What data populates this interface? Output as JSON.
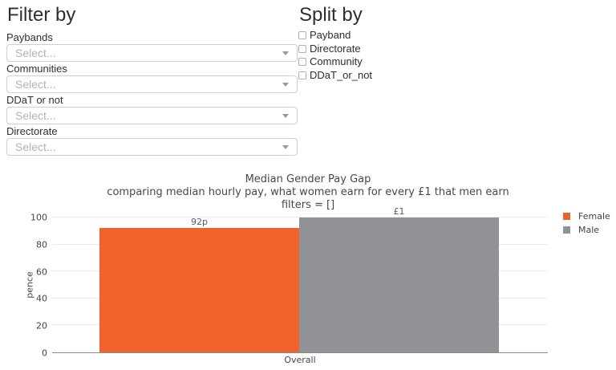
{
  "filter_panel": {
    "title": "Filter by",
    "filters": [
      {
        "label": "Paybands",
        "placeholder": "Select..."
      },
      {
        "label": "Communities",
        "placeholder": "Select..."
      },
      {
        "label": "DDaT or not",
        "placeholder": "Select..."
      },
      {
        "label": "Directorate",
        "placeholder": "Select..."
      }
    ]
  },
  "split_panel": {
    "title": "Split by",
    "options": [
      {
        "label": "Payband",
        "checked": false
      },
      {
        "label": "Directorate",
        "checked": false
      },
      {
        "label": "Community",
        "checked": false
      },
      {
        "label": "DDaT_or_not",
        "checked": false
      }
    ]
  },
  "chart_data": {
    "type": "bar",
    "title": "Median Gender Pay Gap",
    "subtitle": "comparing median hourly pay, what women earn for every £1 that men earn",
    "filters_line": "filters = []",
    "categories": [
      "Overall"
    ],
    "series": [
      {
        "name": "Female",
        "values": [
          92
        ],
        "bar_label": "92p",
        "color": "#F0642C"
      },
      {
        "name": "Male",
        "values": [
          100
        ],
        "bar_label": "£1",
        "color": "#919297"
      }
    ],
    "xlabel": "Overall",
    "ylabel": "pence",
    "ylim": [
      0,
      100
    ],
    "yticks": [
      0,
      20,
      40,
      60,
      80,
      100
    ],
    "grid": true,
    "legend_position": "right"
  }
}
